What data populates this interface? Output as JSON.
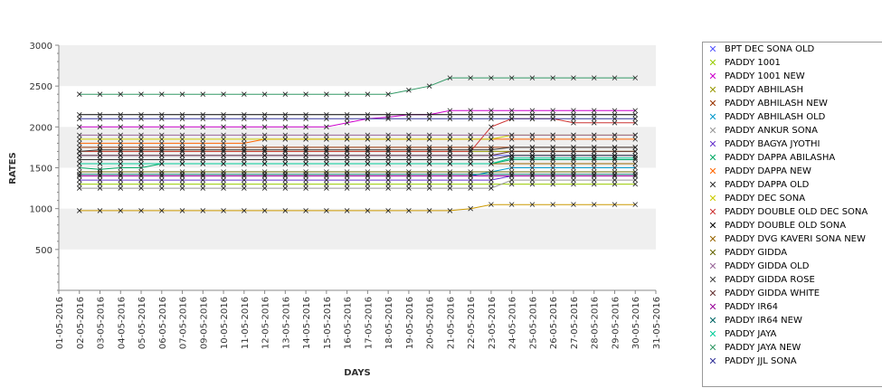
{
  "chart_data": {
    "type": "line",
    "xlabel": "DAYS",
    "ylabel": "RATES",
    "ylim": [
      0,
      3000
    ],
    "yticks": [
      500,
      1000,
      1500,
      2000,
      2500,
      3000
    ],
    "x": [
      "01-05-2016",
      "02-05-2016",
      "03-05-2016",
      "04-05-2016",
      "05-05-2016",
      "06-05-2016",
      "07-05-2016",
      "09-05-2016",
      "10-05-2016",
      "11-05-2016",
      "12-05-2016",
      "13-05-2016",
      "14-05-2016",
      "15-05-2016",
      "16-05-2016",
      "17-05-2016",
      "18-05-2016",
      "19-05-2016",
      "20-05-2016",
      "21-05-2016",
      "22-05-2016",
      "23-05-2016",
      "24-05-2016",
      "25-05-2016",
      "26-05-2016",
      "27-05-2016",
      "28-05-2016",
      "29-05-2016",
      "30-05-2016",
      "31-05-2016"
    ],
    "legend_position": "right",
    "series": [
      {
        "name": "BPT DEC SONA OLD",
        "color": "#5555ff",
        "values": [
          null,
          1650,
          1650,
          1650,
          1650,
          1650,
          1650,
          1650,
          1650,
          1650,
          1650,
          1650,
          1650,
          1650,
          1650,
          1650,
          1650,
          1650,
          1650,
          1650,
          1650,
          1650,
          1650,
          1650,
          1650,
          1650,
          1650,
          1650,
          1650,
          null
        ]
      },
      {
        "name": "PADDY 1001",
        "color": "#99cc00",
        "values": [
          null,
          1300,
          1300,
          1300,
          1300,
          1300,
          1300,
          1300,
          1300,
          1300,
          1300,
          1300,
          1300,
          1300,
          1300,
          1300,
          1300,
          1300,
          1300,
          1300,
          1300,
          1300,
          1300,
          1300,
          1300,
          1300,
          1300,
          1300,
          1300,
          null
        ]
      },
      {
        "name": "PADDY 1001 NEW",
        "color": "#cc00cc",
        "values": [
          null,
          2000,
          2000,
          2000,
          2000,
          2000,
          2000,
          2000,
          2000,
          2000,
          2000,
          2000,
          2000,
          2000,
          2050,
          2100,
          2120,
          2150,
          2150,
          2200,
          2200,
          2200,
          2200,
          2200,
          2200,
          2200,
          2200,
          2200,
          2200,
          null
        ]
      },
      {
        "name": "PADDY ABHILASH",
        "color": "#999900",
        "values": [
          null,
          1700,
          1700,
          1700,
          1700,
          1700,
          1700,
          1700,
          1700,
          1700,
          1700,
          1700,
          1700,
          1700,
          1700,
          1700,
          1700,
          1700,
          1700,
          1700,
          1700,
          1700,
          1700,
          1700,
          1700,
          1700,
          1700,
          1700,
          1700,
          null
        ]
      },
      {
        "name": "PADDY ABHILASH NEW",
        "color": "#993300",
        "values": [
          null,
          1750,
          1750,
          1750,
          1750,
          1750,
          1750,
          1750,
          1750,
          1750,
          1750,
          1750,
          1750,
          1750,
          1750,
          1750,
          1750,
          1750,
          1750,
          1750,
          1750,
          1750,
          1750,
          1750,
          1750,
          1750,
          1750,
          1750,
          1750,
          null
        ]
      },
      {
        "name": "PADDY ABHILASH OLD",
        "color": "#0099cc",
        "values": [
          null,
          1400,
          1400,
          1400,
          1400,
          1400,
          1400,
          1400,
          1400,
          1400,
          1400,
          1400,
          1400,
          1400,
          1400,
          1400,
          1400,
          1400,
          1400,
          1400,
          1400,
          1450,
          1500,
          1500,
          1500,
          1500,
          1500,
          1500,
          1500,
          null
        ]
      },
      {
        "name": "PADDY ANKUR SONA",
        "color": "#999999",
        "values": [
          null,
          1250,
          1250,
          1250,
          1250,
          1250,
          1250,
          1250,
          1250,
          1250,
          1250,
          1250,
          1250,
          1250,
          1250,
          1250,
          1250,
          1250,
          1250,
          1250,
          1250,
          1250,
          1350,
          1350,
          1350,
          1350,
          1350,
          1350,
          1350,
          null
        ]
      },
      {
        "name": "PADDY BAGYA JYOTHI",
        "color": "#6633cc",
        "values": [
          null,
          1350,
          1350,
          1350,
          1350,
          1350,
          1350,
          1350,
          1350,
          1350,
          1350,
          1350,
          1350,
          1350,
          1350,
          1350,
          1350,
          1350,
          1350,
          1350,
          1350,
          1350,
          1400,
          1400,
          1400,
          1400,
          1400,
          1400,
          1400,
          null
        ]
      },
      {
        "name": "PADDY DAPPA ABILASHA",
        "color": "#00aa66",
        "values": [
          null,
          1500,
          1480,
          1500,
          1500,
          1550,
          1550,
          1550,
          1550,
          1550,
          1550,
          1550,
          1550,
          1550,
          1550,
          1550,
          1550,
          1550,
          1550,
          1550,
          1550,
          1550,
          1600,
          1600,
          1600,
          1600,
          1600,
          1600,
          1600,
          null
        ]
      },
      {
        "name": "PADDY DAPPA NEW",
        "color": "#ff6600",
        "values": [
          null,
          1800,
          1800,
          1800,
          1800,
          1800,
          1800,
          1800,
          1800,
          1800,
          1850,
          1850,
          1850,
          1850,
          1850,
          1850,
          1850,
          1850,
          1850,
          1850,
          1850,
          1850,
          1850,
          1850,
          1850,
          1850,
          1850,
          1850,
          1850,
          null
        ]
      },
      {
        "name": "PADDY DAPPA OLD",
        "color": "#333333",
        "values": [
          null,
          1600,
          1600,
          1600,
          1600,
          1600,
          1600,
          1600,
          1600,
          1600,
          1600,
          1600,
          1600,
          1600,
          1600,
          1600,
          1600,
          1600,
          1600,
          1600,
          1600,
          1600,
          1650,
          1650,
          1650,
          1650,
          1650,
          1650,
          1650,
          null
        ]
      },
      {
        "name": "PADDY DEC SONA",
        "color": "#cccc00",
        "values": [
          null,
          1850,
          1850,
          1850,
          1850,
          1850,
          1850,
          1850,
          1850,
          1850,
          1850,
          1850,
          1850,
          1850,
          1850,
          1850,
          1850,
          1850,
          1850,
          1850,
          1850,
          1850,
          1900,
          1900,
          1900,
          1900,
          1900,
          1900,
          1900,
          null
        ]
      },
      {
        "name": "PADDY DOUBLE OLD DEC SONA",
        "color": "#cc3333",
        "values": [
          null,
          1700,
          1700,
          1700,
          1700,
          1700,
          1700,
          1700,
          1700,
          1700,
          1700,
          1700,
          1700,
          1700,
          1700,
          1700,
          1700,
          1700,
          1700,
          1700,
          1700,
          2000,
          2100,
          2100,
          2100,
          2050,
          2050,
          2050,
          2050,
          null
        ]
      },
      {
        "name": "PADDY DOUBLE OLD SONA",
        "color": "#000000",
        "values": [
          null,
          2150,
          2150,
          2150,
          2150,
          2150,
          2150,
          2150,
          2150,
          2150,
          2150,
          2150,
          2150,
          2150,
          2150,
          2150,
          2150,
          2150,
          2150,
          2150,
          2150,
          2150,
          2150,
          2150,
          2150,
          2150,
          2150,
          2150,
          2150,
          null
        ]
      },
      {
        "name": "PADDY DVG KAVERI SONA NEW",
        "color": "#996600",
        "values": [
          null,
          1550,
          1550,
          1550,
          1550,
          1550,
          1550,
          1550,
          1550,
          1550,
          1550,
          1550,
          1550,
          1550,
          1550,
          1550,
          1550,
          1550,
          1550,
          1550,
          1550,
          1550,
          1550,
          1550,
          1550,
          1550,
          1550,
          1550,
          1550,
          null
        ]
      },
      {
        "name": "PADDY GIDDA",
        "color": "#666600",
        "values": [
          null,
          1450,
          1450,
          1450,
          1450,
          1450,
          1450,
          1450,
          1450,
          1450,
          1450,
          1450,
          1450,
          1450,
          1450,
          1450,
          1450,
          1450,
          1450,
          1450,
          1450,
          1450,
          1450,
          1450,
          1450,
          1450,
          1450,
          1450,
          1450,
          null
        ]
      },
      {
        "name": "PADDY GIDDA OLD",
        "color": "#996699",
        "values": [
          null,
          1900,
          1900,
          1900,
          1900,
          1900,
          1900,
          1900,
          1900,
          1900,
          1900,
          1900,
          1900,
          1900,
          1900,
          1900,
          1900,
          1900,
          1900,
          1900,
          1900,
          1900,
          1900,
          1900,
          1900,
          1900,
          1900,
          1900,
          1900,
          null
        ]
      },
      {
        "name": "PADDY GIDDA ROSE",
        "color": "#444444",
        "values": [
          null,
          1700,
          1720,
          1720,
          1720,
          1720,
          1720,
          1720,
          1720,
          1720,
          1720,
          1720,
          1720,
          1720,
          1720,
          1720,
          1720,
          1720,
          1720,
          1720,
          1720,
          1720,
          1750,
          1750,
          1750,
          1750,
          1750,
          1750,
          1750,
          null
        ]
      },
      {
        "name": "PADDY GIDDA WHITE",
        "color": "#663333",
        "values": [
          null,
          1650,
          1650,
          1650,
          1650,
          1650,
          1650,
          1650,
          1650,
          1650,
          1650,
          1650,
          1650,
          1650,
          1650,
          1650,
          1650,
          1650,
          1650,
          1650,
          1650,
          1650,
          1700,
          1700,
          1700,
          1700,
          1700,
          1700,
          1700,
          null
        ]
      },
      {
        "name": "PADDY IR64",
        "color": "#990099",
        "values": [
          null,
          1400,
          1400,
          1400,
          1400,
          1400,
          1400,
          1400,
          1400,
          1400,
          1400,
          1400,
          1400,
          1400,
          1400,
          1400,
          1400,
          1400,
          1400,
          1400,
          1400,
          1400,
          1400,
          1400,
          1400,
          1400,
          1400,
          1400,
          1400,
          null
        ]
      },
      {
        "name": "PADDY IR64 NEW",
        "color": "#006666",
        "values": [
          null,
          1420,
          1420,
          1420,
          1420,
          1420,
          1420,
          1420,
          1420,
          1420,
          1420,
          1420,
          1420,
          1420,
          1420,
          1420,
          1420,
          1420,
          1420,
          1420,
          1420,
          1420,
          1420,
          1420,
          1420,
          1420,
          1420,
          1420,
          1420,
          null
        ]
      },
      {
        "name": "PADDY JAYA",
        "color": "#00cc99",
        "values": [
          null,
          1550,
          1550,
          1550,
          1550,
          1550,
          1550,
          1550,
          1550,
          1550,
          1550,
          1550,
          1550,
          1550,
          1550,
          1550,
          1550,
          1550,
          1550,
          1550,
          1550,
          1550,
          1620,
          1620,
          1620,
          1620,
          1620,
          1620,
          1620,
          null
        ]
      },
      {
        "name": "PADDY JAYA NEW",
        "color": "#339966",
        "values": [
          null,
          2400,
          2400,
          2400,
          2400,
          2400,
          2400,
          2400,
          2400,
          2400,
          2400,
          2400,
          2400,
          2400,
          2400,
          2400,
          2400,
          2450,
          2500,
          2600,
          2600,
          2600,
          2600,
          2600,
          2600,
          2600,
          2600,
          2600,
          2600,
          null
        ]
      },
      {
        "name": "PADDY JJL SONA",
        "color": "#333399",
        "values": [
          null,
          2100,
          2100,
          2100,
          2100,
          2100,
          2100,
          2100,
          2100,
          2100,
          2100,
          2100,
          2100,
          2100,
          2100,
          2100,
          2100,
          2100,
          2100,
          2100,
          2100,
          2100,
          2100,
          2100,
          2100,
          2100,
          2100,
          2100,
          2100,
          null
        ]
      },
      {
        "name": "",
        "color": "#cc9900",
        "values": [
          null,
          975,
          975,
          975,
          975,
          975,
          975,
          975,
          975,
          975,
          975,
          975,
          975,
          975,
          975,
          975,
          975,
          975,
          975,
          975,
          1000,
          1050,
          1050,
          1050,
          1050,
          1050,
          1050,
          1050,
          1050,
          null
        ]
      }
    ]
  }
}
